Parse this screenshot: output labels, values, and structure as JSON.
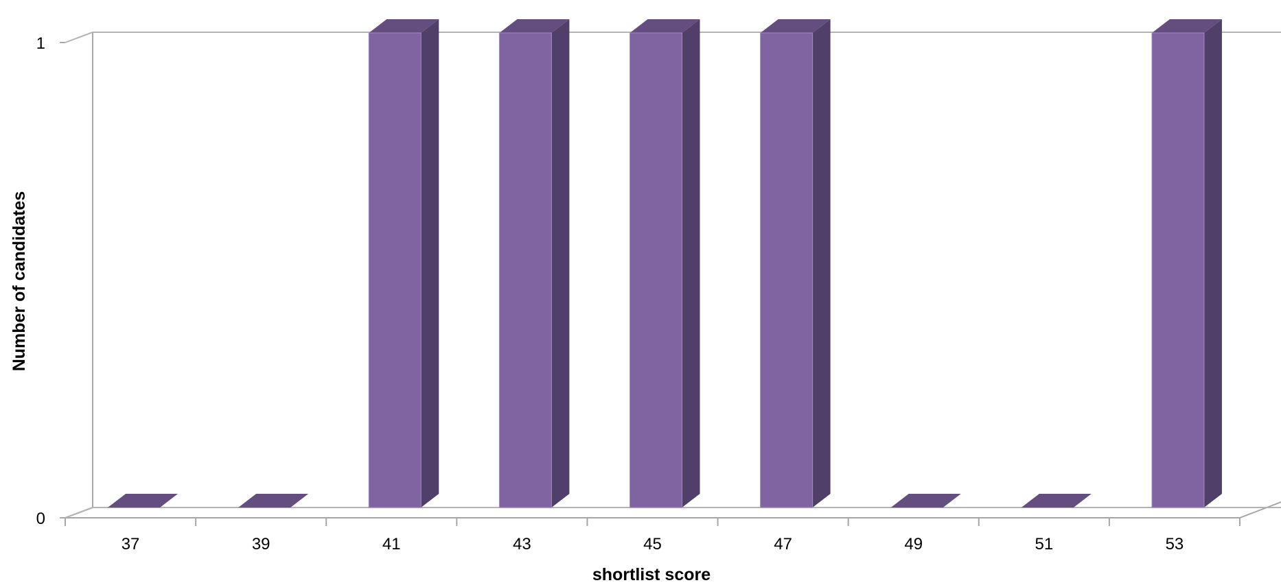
{
  "chart_data": {
    "type": "bar",
    "style": "3d-column",
    "categories": [
      "37",
      "39",
      "41",
      "43",
      "45",
      "47",
      "49",
      "51",
      "53"
    ],
    "values": [
      0,
      0,
      1,
      1,
      1,
      1,
      0,
      0,
      1
    ],
    "xlabel": "shortlist score",
    "ylabel": "Number of candidates",
    "ylim": [
      0,
      1
    ],
    "yticks": [
      "0",
      "1"
    ],
    "grid": true,
    "legend": "none",
    "colors": {
      "bar_front": "#8064a2",
      "bar_side": "#503f69",
      "bar_top": "#644e80",
      "grid": "#b3b3b3",
      "axis": "#a6a6a6"
    }
  }
}
